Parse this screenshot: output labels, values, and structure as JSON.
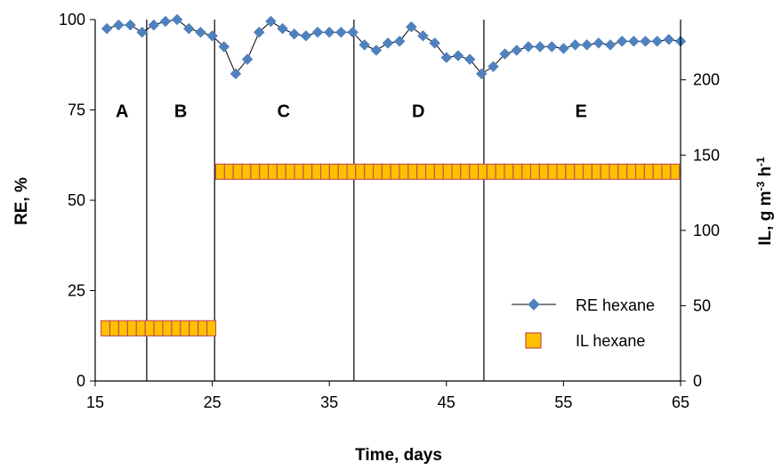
{
  "chart_data": {
    "type": "line",
    "xlabel": "Time, days",
    "ylabel": "RE, %",
    "y2label_main": "IL, g m",
    "y2label_sup1": "-3",
    "y2label_mid": " h",
    "y2label_sup2": "-1",
    "xlim": [
      15,
      65
    ],
    "ylim": [
      0,
      100
    ],
    "y2lim": [
      0,
      240
    ],
    "xticks": [
      15,
      25,
      35,
      45,
      55,
      65
    ],
    "yticks": [
      0,
      25,
      50,
      75,
      100
    ],
    "y2ticks": [
      0,
      50,
      100,
      150,
      200
    ],
    "grid": false,
    "legend_position": "bottom-right",
    "phase_boundaries": [
      19.4,
      25.2,
      37.1,
      48.2
    ],
    "phase_labels": [
      {
        "text": "A",
        "x": 17.3
      },
      {
        "text": "B",
        "x": 22.3
      },
      {
        "text": "C",
        "x": 31.1
      },
      {
        "text": "D",
        "x": 42.6
      },
      {
        "text": "E",
        "x": 56.5
      }
    ],
    "phase_label_y": 75,
    "series": [
      {
        "name": "RE hexane",
        "axis": "left",
        "marker": "diamond",
        "color": "#4f81bd",
        "line_color": "#000000",
        "x": [
          16,
          17,
          18,
          19,
          20,
          21,
          22,
          23,
          24,
          25,
          26,
          27,
          28,
          29,
          30,
          31,
          32,
          33,
          34,
          35,
          36,
          37,
          38,
          39,
          40,
          41,
          42,
          43,
          44,
          45,
          46,
          47,
          48,
          49,
          50,
          51,
          52,
          53,
          54,
          55,
          56,
          57,
          58,
          59,
          60,
          61,
          62,
          63,
          64,
          65
        ],
        "y": [
          97.5,
          98.5,
          98.5,
          96.5,
          98.5,
          99.5,
          100,
          97.5,
          96.5,
          95.5,
          92.5,
          85,
          89,
          96.5,
          99.5,
          97.5,
          96,
          95.5,
          96.5,
          96.5,
          96.5,
          96.5,
          93,
          91.5,
          93.5,
          94,
          98,
          95.5,
          93.5,
          89.5,
          90,
          89,
          85,
          87,
          90.5,
          91.5,
          92.5,
          92.5,
          92.5,
          92,
          93,
          93,
          93.5,
          93,
          94,
          94,
          94,
          94,
          94.5,
          94
        ]
      },
      {
        "name": "IL hexane",
        "axis": "right",
        "marker": "square",
        "color": "#ffc000",
        "edge_color": "#c0504d",
        "segments": [
          {
            "x_start": 15.5,
            "x_end": 25.3,
            "count": 13,
            "value": 35
          },
          {
            "x_start": 25.3,
            "x_end": 64.9,
            "count": 53,
            "value": 139
          }
        ]
      }
    ]
  }
}
